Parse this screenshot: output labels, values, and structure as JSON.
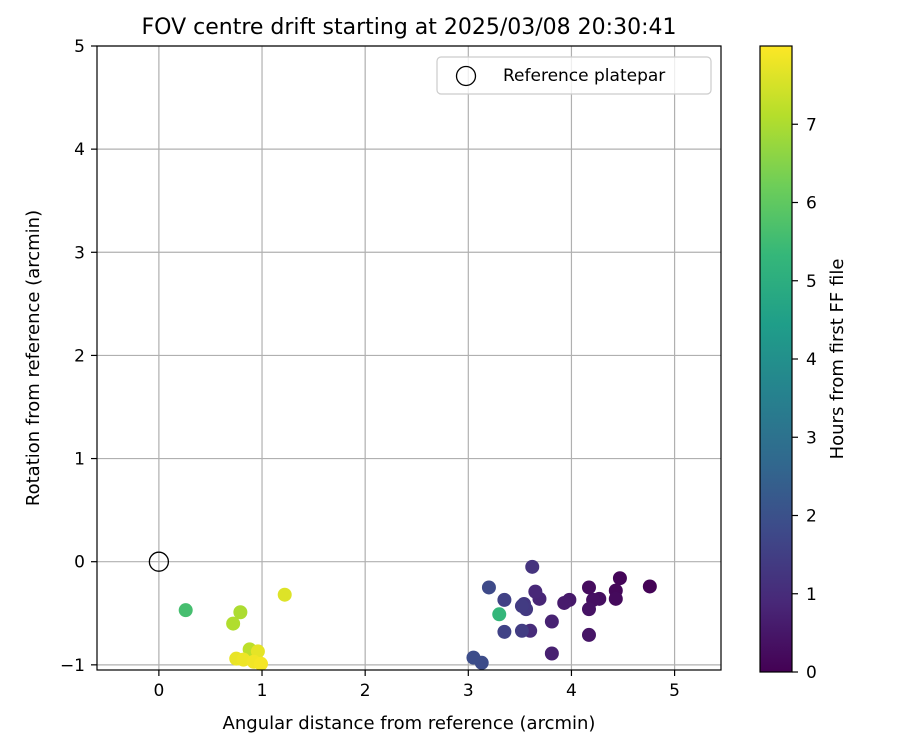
{
  "chart_data": {
    "type": "scatter",
    "title": "FOV centre drift starting at 2025/03/08 20:30:41",
    "xlabel": "Angular distance from reference (arcmin)",
    "ylabel": "Rotation from reference (arcmin)",
    "xlim": [
      -0.6,
      5.45
    ],
    "ylim": [
      -1.05,
      5
    ],
    "xticks": [
      "0",
      "1",
      "2",
      "3",
      "4",
      "5"
    ],
    "yticks": [
      "−1",
      "0",
      "1",
      "2",
      "3",
      "4",
      "5"
    ],
    "grid": true,
    "legend": {
      "position": "top-right",
      "entries": [
        {
          "label": "Reference platepar",
          "marker": "open-circle"
        }
      ]
    },
    "reference_point": {
      "x": 0,
      "y": 0
    },
    "points": [
      {
        "x": 4.76,
        "y": -0.24,
        "hours": 0.05
      },
      {
        "x": 4.47,
        "y": -0.16,
        "hours": 0.1
      },
      {
        "x": 4.43,
        "y": -0.28,
        "hours": 0.15
      },
      {
        "x": 4.43,
        "y": -0.36,
        "hours": 0.2
      },
      {
        "x": 4.27,
        "y": -0.36,
        "hours": 0.3
      },
      {
        "x": 4.21,
        "y": -0.37,
        "hours": 0.35
      },
      {
        "x": 4.17,
        "y": -0.25,
        "hours": 0.25
      },
      {
        "x": 4.17,
        "y": -0.46,
        "hours": 0.4
      },
      {
        "x": 4.17,
        "y": -0.71,
        "hours": 0.45
      },
      {
        "x": 3.98,
        "y": -0.37,
        "hours": 0.55
      },
      {
        "x": 3.93,
        "y": -0.4,
        "hours": 0.6
      },
      {
        "x": 3.81,
        "y": -0.58,
        "hours": 0.75
      },
      {
        "x": 3.81,
        "y": -0.89,
        "hours": 0.7
      },
      {
        "x": 3.69,
        "y": -0.36,
        "hours": 0.85
      },
      {
        "x": 3.65,
        "y": -0.29,
        "hours": 0.9
      },
      {
        "x": 3.6,
        "y": -0.67,
        "hours": 1.0
      },
      {
        "x": 3.62,
        "y": -0.05,
        "hours": 1.2
      },
      {
        "x": 3.54,
        "y": -0.41,
        "hours": 1.3
      },
      {
        "x": 3.56,
        "y": -0.46,
        "hours": 1.35
      },
      {
        "x": 3.52,
        "y": -0.43,
        "hours": 1.4
      },
      {
        "x": 3.52,
        "y": -0.67,
        "hours": 1.45
      },
      {
        "x": 3.35,
        "y": -0.37,
        "hours": 1.55
      },
      {
        "x": 3.35,
        "y": -0.68,
        "hours": 1.6
      },
      {
        "x": 3.3,
        "y": -0.51,
        "hours": 5.3
      },
      {
        "x": 3.2,
        "y": -0.25,
        "hours": 1.8
      },
      {
        "x": 3.13,
        "y": -0.98,
        "hours": 1.85
      },
      {
        "x": 3.05,
        "y": -0.93,
        "hours": 1.9
      },
      {
        "x": 0.26,
        "y": -0.47,
        "hours": 5.6
      },
      {
        "x": 0.79,
        "y": -0.49,
        "hours": 7.0
      },
      {
        "x": 0.72,
        "y": -0.6,
        "hours": 7.05
      },
      {
        "x": 1.22,
        "y": -0.32,
        "hours": 7.6
      },
      {
        "x": 0.88,
        "y": -0.85,
        "hours": 7.2
      },
      {
        "x": 0.96,
        "y": -0.87,
        "hours": 7.7
      },
      {
        "x": 0.75,
        "y": -0.94,
        "hours": 7.75
      },
      {
        "x": 0.82,
        "y": -0.95,
        "hours": 7.8
      },
      {
        "x": 0.92,
        "y": -0.97,
        "hours": 7.85
      },
      {
        "x": 0.99,
        "y": -0.99,
        "hours": 7.9
      }
    ],
    "colorbar": {
      "label": "Hours from first FF file",
      "ticks": [
        "0",
        "1",
        "2",
        "3",
        "4",
        "5",
        "6",
        "7"
      ],
      "range": [
        0,
        8
      ],
      "colormap": "viridis"
    }
  }
}
